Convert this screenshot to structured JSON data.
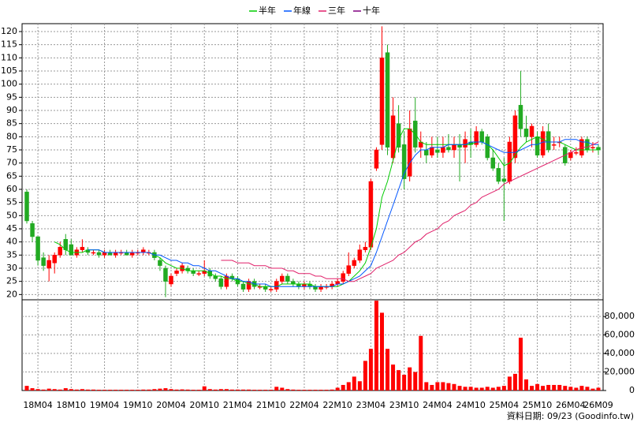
{
  "chart_data": {
    "type": "candlestick",
    "legend": "top",
    "grid": true,
    "up_color": "#ff0000",
    "down_color": "#22aa22",
    "categories": [
      null,
      null,
      "18M04",
      null,
      null,
      null,
      null,
      null,
      "18M10",
      null,
      null,
      null,
      null,
      null,
      "19M04",
      null,
      null,
      null,
      null,
      null,
      "19M10",
      null,
      null,
      null,
      null,
      null,
      "20M04",
      null,
      null,
      null,
      null,
      null,
      "20M10",
      null,
      null,
      null,
      null,
      null,
      "21M04",
      null,
      null,
      null,
      null,
      null,
      "21M10",
      null,
      null,
      null,
      null,
      null,
      "22M04",
      null,
      null,
      null,
      null,
      null,
      "22M10",
      null,
      null,
      null,
      null,
      null,
      "23M04",
      null,
      null,
      null,
      null,
      null,
      "23M10",
      null,
      null,
      null,
      null,
      null,
      "24M04",
      null,
      null,
      null,
      null,
      null,
      "24M10",
      null,
      null,
      null,
      null,
      null,
      "25M04",
      null,
      null,
      null,
      null,
      null,
      "25M10",
      null,
      null,
      null,
      null,
      null,
      "26M04",
      null,
      null,
      null,
      null,
      "26M09"
    ],
    "open": [
      59,
      47,
      42,
      34,
      30,
      32,
      35,
      41,
      39,
      35,
      37,
      37,
      36,
      36,
      35,
      36,
      35,
      36,
      36,
      35,
      36,
      36,
      36,
      36,
      33,
      30,
      24,
      28,
      29,
      30,
      29,
      28,
      28,
      29,
      27,
      26,
      23,
      27,
      26,
      24,
      22,
      25,
      23,
      23,
      22,
      22,
      25,
      27,
      25,
      24,
      23,
      24,
      23,
      22,
      23,
      23,
      24,
      25,
      28,
      31,
      33,
      37,
      38,
      68,
      77,
      112,
      72,
      85,
      77,
      65,
      86,
      76,
      75,
      73,
      75,
      74,
      76,
      75,
      77,
      76,
      78,
      77,
      82,
      80,
      72,
      68,
      64,
      63,
      72,
      92,
      83,
      80,
      80,
      73,
      82,
      77,
      78,
      76,
      72,
      74,
      73,
      79,
      76,
      76
    ],
    "high": [
      60,
      48,
      42,
      36,
      35,
      36,
      40,
      43,
      41,
      38,
      41,
      38,
      37,
      37,
      37,
      37,
      37,
      37,
      37,
      37,
      37,
      38,
      37,
      37,
      34,
      31,
      28,
      30,
      32,
      31,
      30,
      29,
      33,
      30,
      28,
      27,
      28,
      28,
      27,
      25,
      26,
      26,
      24,
      24,
      23,
      26,
      28,
      28,
      26,
      25,
      25,
      25,
      24,
      24,
      24,
      25,
      26,
      29,
      36,
      34,
      39,
      40,
      64,
      76,
      122,
      115,
      95,
      92,
      82,
      90,
      95,
      82,
      78,
      80,
      80,
      80,
      81,
      80,
      81,
      82,
      83,
      84,
      83,
      81,
      75,
      70,
      72,
      80,
      90,
      105,
      88,
      85,
      82,
      84,
      85,
      80,
      80,
      77,
      75,
      76,
      80,
      80,
      78,
      77
    ],
    "low": [
      47,
      40,
      31,
      29,
      25,
      28,
      34,
      35,
      35,
      34,
      36,
      35,
      35,
      34,
      34,
      35,
      34,
      35,
      35,
      34,
      35,
      35,
      35,
      33,
      29,
      19,
      23,
      27,
      28,
      28,
      27,
      27,
      27,
      26,
      25,
      22,
      22,
      25,
      23,
      21,
      21,
      22,
      22,
      21,
      21,
      21,
      24,
      24,
      23,
      22,
      22,
      22,
      21,
      21,
      22,
      22,
      23,
      24,
      27,
      30,
      32,
      36,
      37,
      67,
      75,
      73,
      70,
      74,
      60,
      63,
      74,
      72,
      70,
      72,
      72,
      72,
      74,
      72,
      63,
      70,
      72,
      76,
      77,
      71,
      67,
      62,
      48,
      62,
      70,
      80,
      78,
      76,
      72,
      72,
      74,
      75,
      76,
      69,
      71,
      73,
      72,
      74,
      74,
      73
    ],
    "close": [
      48,
      42,
      33,
      31,
      33,
      35,
      38,
      37,
      35,
      37,
      38,
      36,
      36,
      35,
      36,
      35,
      36,
      36,
      35,
      36,
      36,
      37,
      36,
      34,
      31,
      25,
      27,
      29,
      31,
      29,
      28,
      28,
      29,
      27,
      26,
      23,
      27,
      26,
      24,
      22,
      25,
      23,
      23,
      22,
      22,
      25,
      27,
      25,
      24,
      23,
      24,
      23,
      22,
      23,
      23,
      24,
      25,
      28,
      31,
      33,
      37,
      38,
      63,
      75,
      110,
      76,
      88,
      76,
      64,
      83,
      76,
      78,
      73,
      76,
      74,
      76,
      75,
      77,
      76,
      79,
      77,
      82,
      78,
      72,
      68,
      63,
      63,
      78,
      88,
      83,
      80,
      84,
      73,
      82,
      75,
      77,
      78,
      70,
      74,
      74,
      79,
      75,
      76,
      75
    ],
    "ylim": [
      18,
      123
    ],
    "yticks": [
      20,
      25,
      30,
      35,
      40,
      45,
      50,
      55,
      60,
      65,
      70,
      75,
      80,
      85,
      90,
      95,
      100,
      105,
      110,
      115,
      120
    ],
    "series": [
      {
        "name": "半年",
        "color": "#00cc00",
        "values": [
          null,
          null,
          null,
          null,
          null,
          40,
          39,
          37,
          36,
          36,
          36,
          37,
          37,
          37,
          36,
          36,
          36,
          36,
          36,
          36,
          36,
          36,
          36,
          35,
          34,
          32,
          31,
          30,
          30,
          29,
          29,
          29,
          29,
          28,
          27,
          27,
          26,
          26,
          25,
          25,
          24,
          24,
          23,
          23,
          23,
          23,
          24,
          24,
          24,
          24,
          24,
          24,
          23,
          23,
          23,
          23,
          23,
          24,
          25,
          27,
          29,
          32,
          38,
          45,
          57,
          63,
          71,
          79,
          83,
          83,
          81,
          78,
          77,
          77,
          77,
          77,
          77,
          77,
          77,
          77,
          77,
          78,
          78,
          77,
          75,
          72,
          69,
          70,
          73,
          76,
          78,
          79,
          80,
          79,
          78,
          78,
          78,
          77,
          76,
          75,
          75,
          75,
          75,
          75
        ]
      },
      {
        "name": "年線",
        "color": "#0055ff",
        "values": [
          null,
          null,
          null,
          null,
          null,
          null,
          null,
          null,
          null,
          null,
          null,
          37,
          37,
          37,
          36,
          36,
          36,
          36,
          36,
          36,
          36,
          36,
          36,
          35,
          35,
          34,
          33,
          33,
          32,
          32,
          31,
          31,
          30,
          29,
          29,
          28,
          27,
          26,
          26,
          25,
          25,
          24,
          24,
          24,
          23,
          23,
          23,
          23,
          23,
          23,
          23,
          23,
          23,
          23,
          23,
          23,
          24,
          24,
          25,
          26,
          27,
          29,
          31,
          36,
          42,
          48,
          54,
          60,
          66,
          70,
          73,
          75,
          75,
          76,
          76,
          76,
          77,
          77,
          77,
          77,
          78,
          78,
          78,
          77,
          76,
          75,
          74,
          74,
          74,
          75,
          76,
          77,
          77,
          78,
          78,
          78,
          78,
          79,
          79,
          79,
          78,
          78,
          77,
          77
        ]
      },
      {
        "name": "三年",
        "color": "#e0206a",
        "values": [
          null,
          null,
          null,
          null,
          null,
          null,
          null,
          null,
          null,
          null,
          null,
          null,
          null,
          null,
          null,
          null,
          null,
          null,
          null,
          null,
          null,
          null,
          null,
          null,
          null,
          null,
          null,
          null,
          null,
          null,
          null,
          null,
          null,
          null,
          null,
          33,
          33,
          33,
          32,
          32,
          32,
          31,
          31,
          31,
          30,
          30,
          30,
          29,
          29,
          28,
          28,
          28,
          27,
          27,
          26,
          26,
          26,
          26,
          25,
          25,
          26,
          27,
          28,
          30,
          31,
          32,
          33,
          35,
          36,
          38,
          40,
          41,
          43,
          44,
          45,
          47,
          48,
          50,
          51,
          52,
          54,
          55,
          57,
          58,
          59,
          60,
          62,
          63,
          64,
          65,
          66,
          67,
          68,
          69,
          70,
          71,
          72,
          73,
          74,
          75,
          76,
          76,
          77,
          78
        ]
      },
      {
        "name": "十年",
        "color": "#800080",
        "values": [
          null,
          null,
          null,
          null,
          null,
          null,
          null,
          null,
          null,
          null,
          null,
          null,
          null,
          null,
          null,
          null,
          null,
          null,
          null,
          null,
          null,
          null,
          null,
          null,
          null,
          null,
          null,
          null,
          null,
          null,
          null,
          null,
          null,
          null,
          null,
          null,
          null,
          null,
          null,
          null,
          null,
          null,
          null,
          null,
          null,
          null,
          null,
          null,
          null,
          null,
          null,
          null,
          null,
          null,
          null,
          null,
          null,
          null,
          null,
          null,
          null,
          null,
          null,
          null,
          null,
          null,
          null,
          null,
          null,
          null,
          null,
          null,
          null,
          null,
          null,
          null,
          null,
          null,
          null,
          null,
          null,
          null,
          null,
          null,
          null,
          null,
          null,
          null,
          null,
          null,
          null,
          null,
          null,
          null,
          null,
          null,
          null,
          null,
          null,
          null,
          null,
          null,
          null,
          null
        ]
      }
    ],
    "volume": {
      "color": "#ff0000",
      "values": [
        5000,
        2500,
        1500,
        1000,
        2000,
        1500,
        1000,
        2500,
        1500,
        1000,
        1500,
        1000,
        1000,
        800,
        800,
        800,
        800,
        800,
        800,
        800,
        800,
        1000,
        1000,
        1500,
        2000,
        2500,
        1500,
        1000,
        1200,
        1000,
        800,
        800,
        4500,
        1500,
        1000,
        1500,
        1500,
        1000,
        1000,
        1000,
        1000,
        800,
        800,
        800,
        800,
        4000,
        3000,
        1500,
        1000,
        800,
        800,
        800,
        800,
        800,
        800,
        1000,
        3000,
        6000,
        9000,
        15000,
        10000,
        32000,
        45000,
        97000,
        84000,
        45000,
        28000,
        22000,
        17000,
        25000,
        20000,
        59000,
        9000,
        6000,
        9000,
        9000,
        8000,
        7000,
        5000,
        4000,
        4000,
        3000,
        3000,
        4000,
        3000,
        4000,
        5000,
        15000,
        18000,
        57000,
        12000,
        5000,
        7000,
        5000,
        6000,
        6000,
        6000,
        5000,
        4000,
        3000,
        5000,
        4000,
        2000,
        3000
      ],
      "ylim": [
        0,
        98000
      ],
      "yticks": [
        0,
        {
          "value": 20000,
          "label": "20,000"
        },
        {
          "value": 40000,
          "label": "40,000"
        },
        {
          "value": 60000,
          "label": "60,000"
        },
        {
          "value": 80000,
          "label": "80,000"
        }
      ]
    },
    "footnote": "資料日期: 09/23  (Goodinfo.tw)"
  }
}
